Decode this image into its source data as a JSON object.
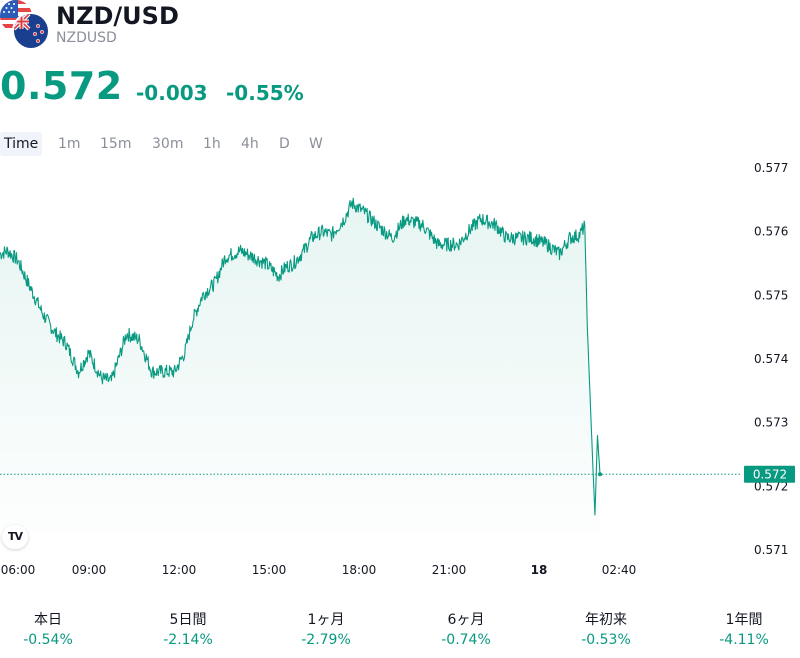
{
  "header": {
    "title": "NZD/USD",
    "subtitle": "NZDUSD"
  },
  "quote": {
    "price": "0.572",
    "change": "-0.003",
    "change_pct": "-0.55%"
  },
  "timeframes": [
    {
      "label": "Time",
      "active": true
    },
    {
      "label": "1m"
    },
    {
      "label": "15m"
    },
    {
      "label": "30m"
    },
    {
      "label": "1h"
    },
    {
      "label": "4h"
    },
    {
      "label": "D"
    },
    {
      "label": "W"
    }
  ],
  "chart_data": {
    "type": "area",
    "title": "",
    "xlabel": "",
    "ylabel": "",
    "x_ticks": [
      "06:00",
      "09:00",
      "12:00",
      "15:00",
      "18:00",
      "21:00",
      "18",
      "02:40"
    ],
    "y_ticks": [
      "0.577",
      "0.576",
      "0.575",
      "0.574",
      "0.573",
      "0.572",
      "0.571"
    ],
    "ylim": [
      0.5709,
      0.5772
    ],
    "last_price_label": "0.572",
    "last_price": 0.57219,
    "grid": false,
    "series": [
      {
        "values": [
          0.57565,
          0.5757,
          0.57555,
          0.5752,
          0.5747,
          0.5744,
          0.57425,
          0.5738,
          0.5741,
          0.5737,
          0.57365,
          0.5744,
          0.5743,
          0.5738,
          0.5738,
          0.5741,
          0.5746,
          0.575,
          0.5752,
          0.5756,
          0.5757,
          0.5756,
          0.5755,
          0.5753,
          0.57545,
          0.5755,
          0.5757,
          0.5759,
          0.576,
          0.57595,
          0.5762,
          0.57645,
          0.5763,
          0.5761,
          0.5759,
          0.5762,
          0.5761,
          0.5758,
          0.5758,
          0.57605,
          0.5762,
          0.5761,
          0.5759,
          0.5759,
          0.5759,
          0.5758,
          0.57565,
          0.5759,
          0.57595,
          0.5761,
          0.5745,
          0.5735,
          0.5725,
          0.57155,
          0.5728,
          0.57219
        ],
        "color": "#089981"
      }
    ]
  },
  "performance": [
    {
      "label": "本日",
      "value": "-0.54%"
    },
    {
      "label": "5日間",
      "value": "-2.14%"
    },
    {
      "label": "1ヶ月",
      "value": "-2.79%"
    },
    {
      "label": "6ヶ月",
      "value": "-0.74%"
    },
    {
      "label": "年初来",
      "value": "-0.53%"
    },
    {
      "label": "1年間",
      "value": "-4.11%"
    }
  ],
  "colors": {
    "accent": "#089981",
    "text": "#131722",
    "muted": "#8a8f99"
  }
}
